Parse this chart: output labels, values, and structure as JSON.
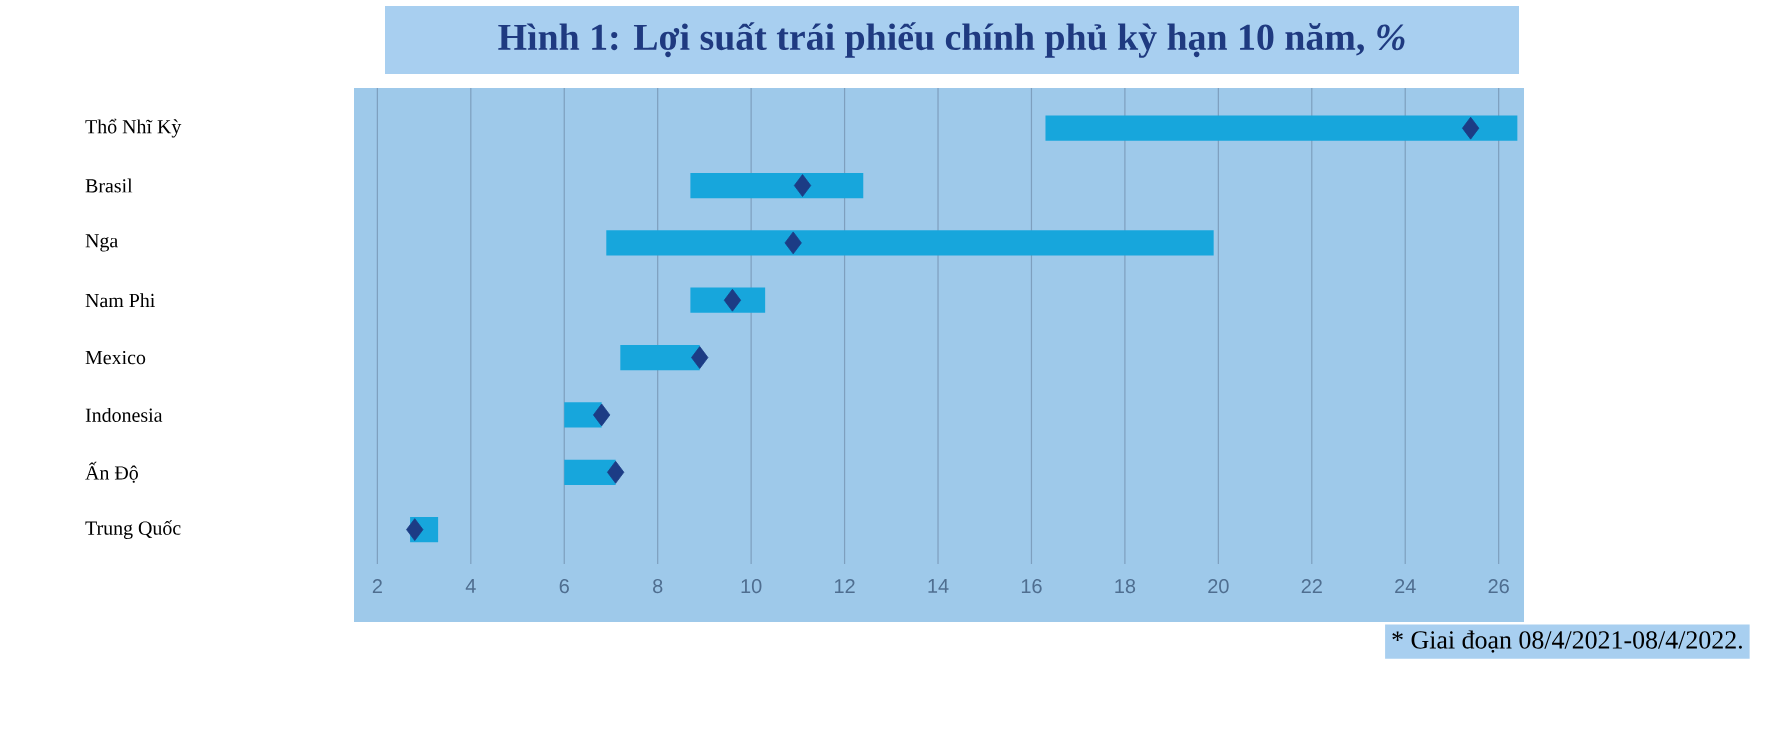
{
  "chart_data": {
    "type": "bar",
    "orientation": "horizontal",
    "title": "Hình 1: Lợi suất trái phiếu chính phủ kỳ hạn 10 năm, *%*",
    "categories": [
      "Thổ Nhĩ Kỳ",
      "Brasil",
      "Nga",
      "Nam Phi",
      "Mexico",
      "Indonesia",
      "Ấn Độ",
      "Trung Quốc"
    ],
    "series": [
      {
        "color": "#17a6dc",
        "base": [
          16.3,
          8.7,
          6.9,
          8.7,
          7.2,
          6.0,
          6.0,
          2.7
        ],
        "values": [
          10.1,
          3.7,
          13.0,
          1.6,
          1.7,
          0.8,
          1.1,
          0.6
        ]
      },
      {
        "type": "scatter",
        "color": "#1c3c85",
        "values": [
          25.4,
          11.1,
          10.9,
          9.6,
          8.9,
          6.8,
          7.1,
          2.8
        ]
      }
    ],
    "marker": "diamond",
    "xlim": [
      1.5,
      26.5
    ],
    "xticks": [
      2,
      4,
      6,
      8,
      10,
      12,
      14,
      16,
      18,
      20,
      22,
      24,
      26
    ],
    "grid": "x",
    "annotations": [
      "* Giai đoạn 08/4/2021-08/4/2022."
    ]
  }
}
